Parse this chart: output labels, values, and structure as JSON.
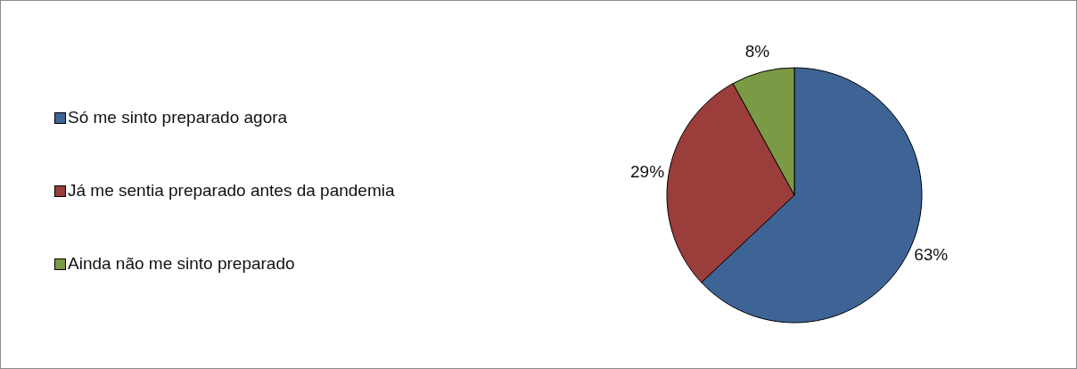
{
  "chart_data": {
    "type": "pie",
    "categories": [
      "Só me sinto preparado agora",
      "Já me sentia preparado antes da pandemia",
      "Ainda não me sinto preparado"
    ],
    "values": [
      63,
      29,
      8
    ],
    "colors": [
      "#3e6496",
      "#9a3d3b",
      "#7a9a45"
    ],
    "value_labels": [
      "63%",
      "29%",
      "8%"
    ],
    "legend": "left"
  }
}
